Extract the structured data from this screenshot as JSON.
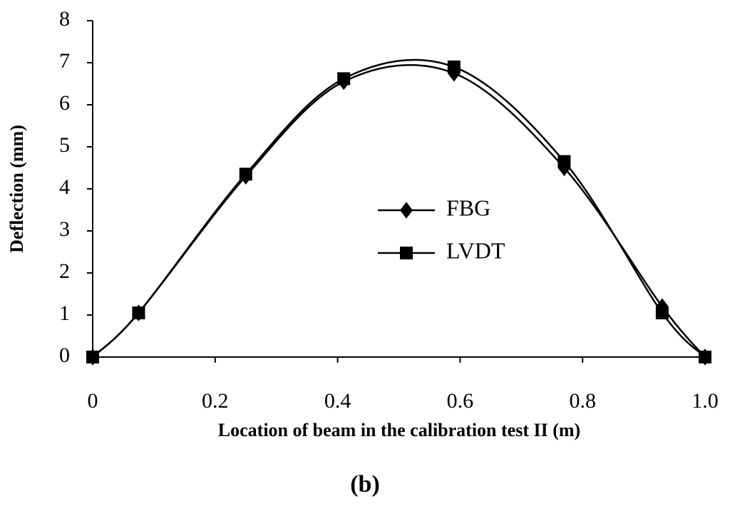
{
  "chart_data": {
    "type": "line",
    "xlabel": "Location of beam in the calibration test II (m)",
    "ylabel": "Deflection (mm)",
    "caption": "(b)",
    "x": [
      0,
      0.075,
      0.25,
      0.41,
      0.59,
      0.77,
      0.93,
      1
    ],
    "series": [
      {
        "name": "FBG",
        "color": "#000000",
        "marker": "diamond",
        "values": [
          0,
          1.05,
          4.3,
          6.55,
          6.75,
          4.5,
          1.2,
          0
        ]
      },
      {
        "name": "LVDT",
        "color": "#000000",
        "marker": "square",
        "values": [
          0,
          1.05,
          4.35,
          6.62,
          6.9,
          4.65,
          1.05,
          0
        ]
      }
    ],
    "xlim": [
      0,
      1
    ],
    "xticks": [
      0,
      0.2,
      0.4,
      0.6,
      0.8,
      {
        "value": 1,
        "label": "1.0"
      }
    ],
    "ylim": [
      0,
      8
    ],
    "yticks": [
      0,
      1,
      2,
      3,
      4,
      5,
      6,
      7,
      8
    ],
    "grid": false,
    "legend": "center"
  }
}
